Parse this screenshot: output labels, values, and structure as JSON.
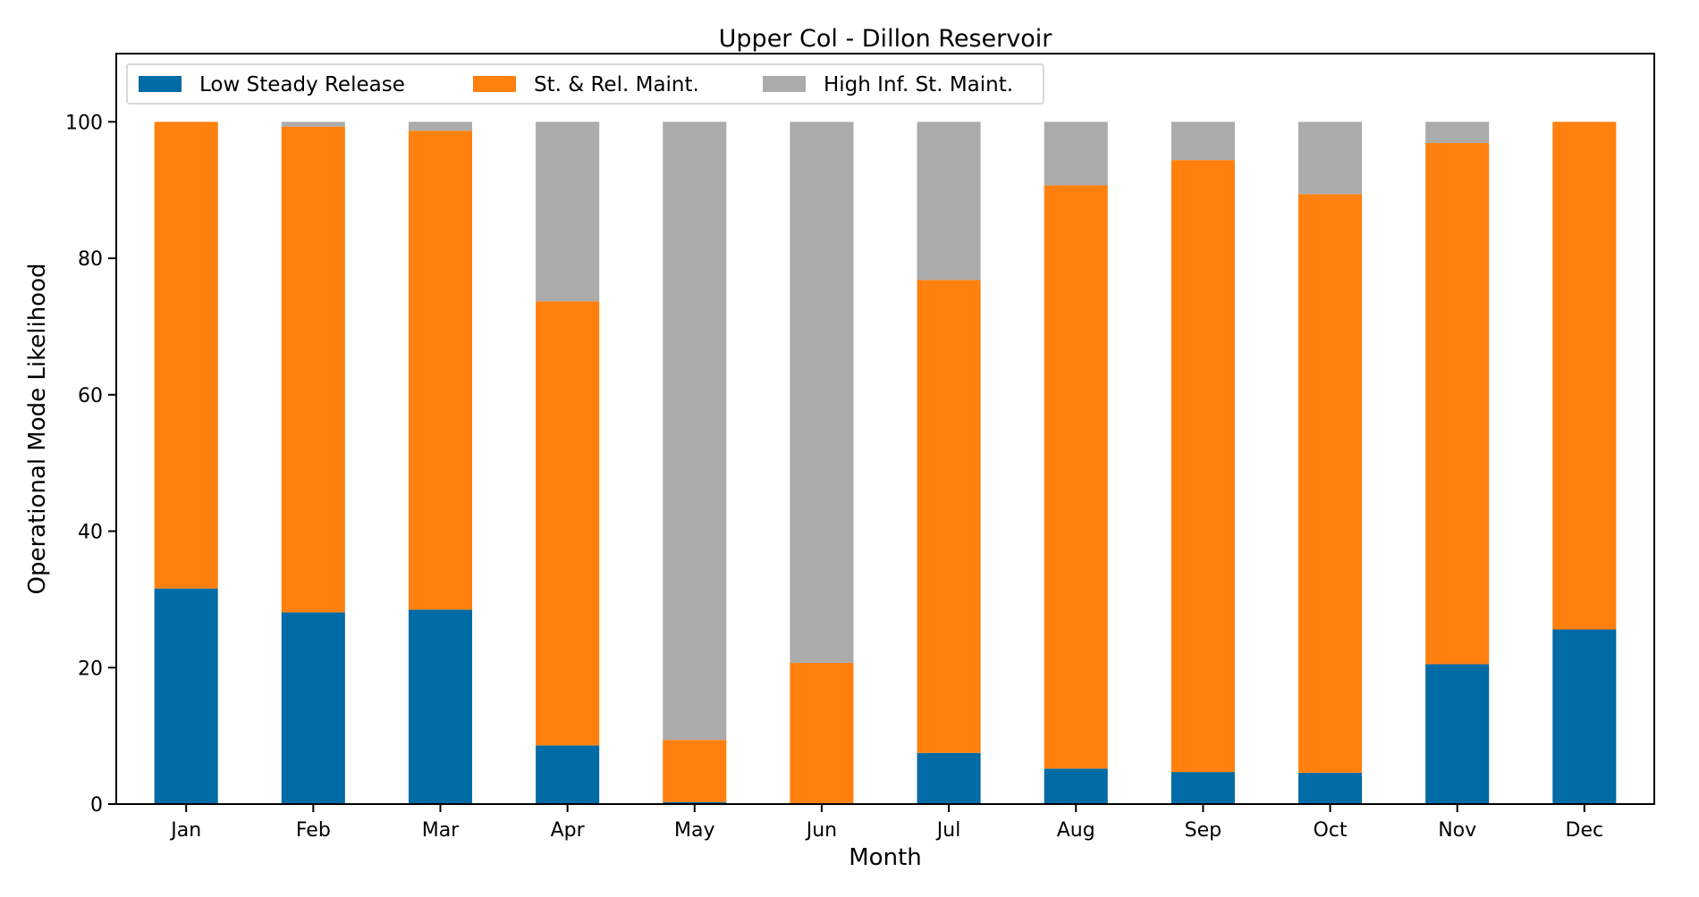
{
  "chart_data": {
    "type": "bar",
    "stacked": true,
    "title": "Upper Col - Dillon Reservoir",
    "xlabel": "Month",
    "ylabel": "Operational Mode Likelihood",
    "categories": [
      "Jan",
      "Feb",
      "Mar",
      "Apr",
      "May",
      "Jun",
      "Jul",
      "Aug",
      "Sep",
      "Oct",
      "Nov",
      "Dec"
    ],
    "ylim": [
      0,
      110
    ],
    "yticks": [
      "0",
      "20",
      "40",
      "60",
      "80",
      "100"
    ],
    "grid": false,
    "legend_position": "top-left",
    "series": [
      {
        "name": "Low Steady Release",
        "color": "#006ba4",
        "values": [
          31.6,
          28.1,
          28.5,
          8.6,
          0.3,
          0.0,
          7.5,
          5.2,
          4.7,
          4.6,
          20.5,
          25.6
        ]
      },
      {
        "name": "St. & Rel. Maint.",
        "color": "#ff800e",
        "values": [
          68.4,
          71.2,
          70.2,
          65.1,
          9.1,
          20.7,
          69.3,
          85.5,
          89.7,
          84.8,
          76.4,
          74.4
        ]
      },
      {
        "name": "High Inf. St. Maint.",
        "color": "#ababab",
        "values": [
          0.0,
          0.7,
          1.3,
          26.3,
          90.6,
          79.3,
          23.2,
          9.3,
          5.6,
          10.6,
          3.1,
          0.0
        ]
      }
    ]
  }
}
